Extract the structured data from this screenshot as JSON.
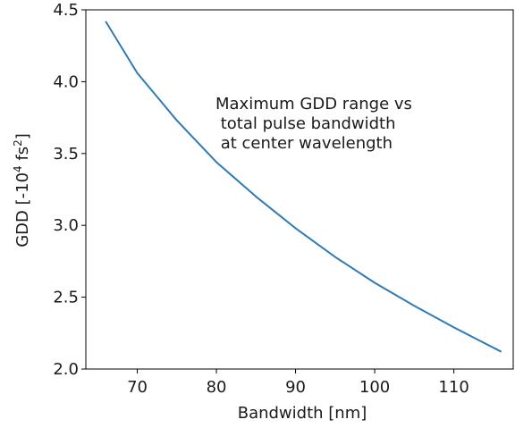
{
  "chart_data": {
    "type": "line",
    "xlabel": "Bandwidth [nm]",
    "ylabel": {
      "prefix": "GDD [-10",
      "exp1": "4",
      "mid": " fs",
      "exp2": "2",
      "suffix": "]"
    },
    "annotation": [
      "Maximum GDD range vs",
      " total pulse bandwidth",
      " at center wavelength"
    ],
    "xlim": [
      63.5,
      117.5
    ],
    "ylim": [
      2.0,
      4.5
    ],
    "xticks": [
      70,
      80,
      90,
      100,
      110
    ],
    "yticks": [
      2.0,
      2.5,
      3.0,
      3.5,
      4.0,
      4.5
    ],
    "xtick_labels": [
      "70",
      "80",
      "90",
      "100",
      "110"
    ],
    "ytick_labels": [
      "2.0",
      "2.5",
      "3.0",
      "3.5",
      "4.0",
      "4.5"
    ],
    "line_color": "#2e7bb6",
    "series": [
      {
        "x": [
          66,
          70,
          75,
          80,
          85,
          90,
          95,
          100,
          105,
          110,
          116
        ],
        "y": [
          4.42,
          4.06,
          3.73,
          3.44,
          3.2,
          2.98,
          2.78,
          2.6,
          2.44,
          2.29,
          2.12
        ]
      }
    ]
  }
}
